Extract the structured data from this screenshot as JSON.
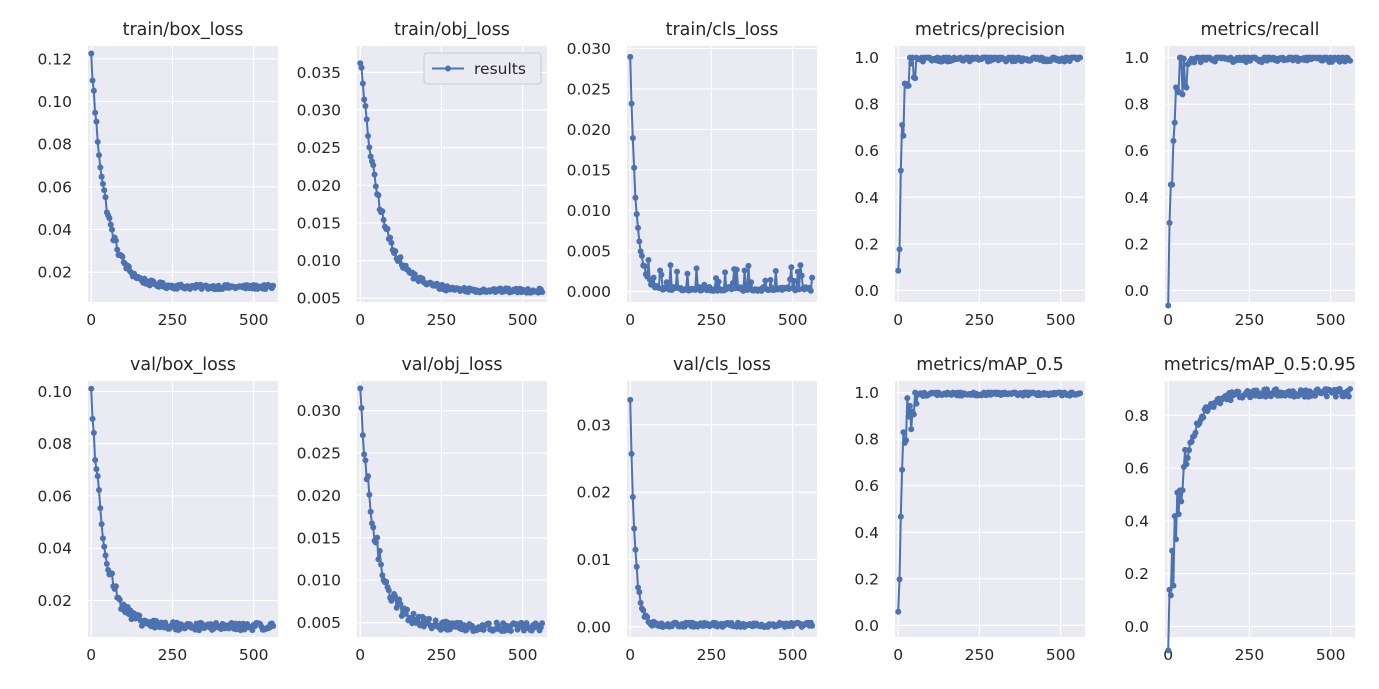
{
  "style": {
    "background": "#ffffff",
    "plot_background": "#eaeaf2",
    "grid_color": "#ffffff",
    "series_color": "#4c72b0",
    "text_color": "#262626"
  },
  "legend": {
    "label": "results",
    "panel": 1,
    "placement": "upper-right"
  },
  "chart_data": [
    {
      "type": "line",
      "title": "train/box_loss",
      "xlim": [
        -10,
        575
      ],
      "ylim": [
        0.006,
        0.126
      ],
      "xticks": [
        0,
        250,
        500
      ],
      "yticks": [
        0.02,
        0.04,
        0.06,
        0.08,
        0.1,
        0.12
      ],
      "xtick_labels": [
        "0",
        "250",
        "500"
      ],
      "ytick_labels": [
        "0.02",
        "0.04",
        "0.06",
        "0.08",
        "0.10",
        "0.12"
      ],
      "curve": {
        "shape": "decay",
        "start": 0.121,
        "end": 0.013,
        "tau": 45,
        "noise": 0.0025,
        "spikes": 0,
        "spike_size": 0
      }
    },
    {
      "type": "line",
      "title": "train/obj_loss",
      "xlim": [
        -10,
        575
      ],
      "ylim": [
        0.0045,
        0.0385
      ],
      "xticks": [
        0,
        250,
        500
      ],
      "yticks": [
        0.005,
        0.01,
        0.015,
        0.02,
        0.025,
        0.03,
        0.035
      ],
      "xtick_labels": [
        "0",
        "250",
        "500"
      ],
      "ytick_labels": [
        "0.005",
        "0.010",
        "0.015",
        "0.020",
        "0.025",
        "0.030",
        "0.035"
      ],
      "curve": {
        "shape": "decay",
        "start": 0.037,
        "end": 0.006,
        "tau": 60,
        "noise": 0.0007,
        "spikes": 0,
        "spike_size": 0
      }
    },
    {
      "type": "line",
      "title": "train/cls_loss",
      "xlim": [
        -10,
        575
      ],
      "ylim": [
        -0.0013,
        0.0303
      ],
      "xticks": [
        0,
        250,
        500
      ],
      "yticks": [
        0.0,
        0.005,
        0.01,
        0.015,
        0.02,
        0.025,
        0.03
      ],
      "xtick_labels": [
        "0",
        "250",
        "500"
      ],
      "ytick_labels": [
        "0.000",
        "0.005",
        "0.010",
        "0.015",
        "0.020",
        "0.025",
        "0.030"
      ],
      "curve": {
        "shape": "decay",
        "start": 0.029,
        "end": 0.0003,
        "tau": 18,
        "noise": 0.0006,
        "spikes": 40,
        "spike_size": 0.003
      }
    },
    {
      "type": "line",
      "title": "metrics/precision",
      "xlim": [
        -10,
        575
      ],
      "ylim": [
        -0.05,
        1.05
      ],
      "xticks": [
        0,
        250,
        500
      ],
      "yticks": [
        0.0,
        0.2,
        0.4,
        0.6,
        0.8,
        1.0
      ],
      "xtick_labels": [
        "0",
        "250",
        "500"
      ],
      "ytick_labels": [
        "0.0",
        "0.2",
        "0.4",
        "0.6",
        "0.8",
        "1.0"
      ],
      "curve": {
        "shape": "rise",
        "start": 0.0,
        "end": 0.995,
        "tau": 12,
        "noise": 0.012,
        "spikes": 0,
        "spike_size": 0
      }
    },
    {
      "type": "line",
      "title": "metrics/recall",
      "xlim": [
        -10,
        575
      ],
      "ylim": [
        -0.05,
        1.05
      ],
      "xticks": [
        0,
        250,
        500
      ],
      "yticks": [
        0.0,
        0.2,
        0.4,
        0.6,
        0.8,
        1.0
      ],
      "xtick_labels": [
        "0",
        "250",
        "500"
      ],
      "ytick_labels": [
        "0.0",
        "0.2",
        "0.4",
        "0.6",
        "0.8",
        "1.0"
      ],
      "curve": {
        "shape": "rise",
        "start": 0.0,
        "end": 0.995,
        "tau": 14,
        "noise": 0.015,
        "spikes": 0,
        "spike_size": 0
      }
    },
    {
      "type": "line",
      "title": "val/box_loss",
      "xlim": [
        -10,
        575
      ],
      "ylim": [
        0.006,
        0.104
      ],
      "xticks": [
        0,
        250,
        500
      ],
      "yticks": [
        0.02,
        0.04,
        0.06,
        0.08,
        0.1
      ],
      "xtick_labels": [
        "0",
        "250",
        "500"
      ],
      "ytick_labels": [
        "0.02",
        "0.04",
        "0.06",
        "0.08",
        "0.10"
      ],
      "curve": {
        "shape": "decay",
        "start": 0.1,
        "end": 0.01,
        "tau": 40,
        "noise": 0.0035,
        "spikes": 0,
        "spike_size": 0
      }
    },
    {
      "type": "line",
      "title": "val/obj_loss",
      "xlim": [
        -10,
        575
      ],
      "ylim": [
        0.0033,
        0.0335
      ],
      "xticks": [
        0,
        250,
        500
      ],
      "yticks": [
        0.005,
        0.01,
        0.015,
        0.02,
        0.025,
        0.03
      ],
      "xtick_labels": [
        "0",
        "250",
        "500"
      ],
      "ytick_labels": [
        "0.005",
        "0.010",
        "0.015",
        "0.020",
        "0.025",
        "0.030"
      ],
      "curve": {
        "shape": "decay",
        "start": 0.031,
        "end": 0.0045,
        "tau": 50,
        "noise": 0.0012,
        "spikes": 0,
        "spike_size": 0
      }
    },
    {
      "type": "line",
      "title": "val/cls_loss",
      "xlim": [
        -10,
        575
      ],
      "ylim": [
        -0.0015,
        0.0365
      ],
      "xticks": [
        0,
        250,
        500
      ],
      "yticks": [
        0.0,
        0.01,
        0.02,
        0.03
      ],
      "xtick_labels": [
        "0",
        "250",
        "500"
      ],
      "ytick_labels": [
        "0.00",
        "0.01",
        "0.02",
        "0.03"
      ],
      "curve": {
        "shape": "decay",
        "start": 0.034,
        "end": 0.0003,
        "tau": 14,
        "noise": 0.0008,
        "spikes": 0,
        "spike_size": 0
      }
    },
    {
      "type": "line",
      "title": "metrics/mAP_0.5",
      "xlim": [
        -10,
        575
      ],
      "ylim": [
        -0.05,
        1.05
      ],
      "xticks": [
        0,
        250,
        500
      ],
      "yticks": [
        0.0,
        0.2,
        0.4,
        0.6,
        0.8,
        1.0
      ],
      "xtick_labels": [
        "0",
        "250",
        "500"
      ],
      "ytick_labels": [
        "0.0",
        "0.2",
        "0.4",
        "0.6",
        "0.8",
        "1.0"
      ],
      "curve": {
        "shape": "rise",
        "start": 0.0,
        "end": 0.995,
        "tau": 12,
        "noise": 0.008,
        "spikes": 0,
        "spike_size": 0
      }
    },
    {
      "type": "line",
      "title": "metrics/mAP_0.5:0.95",
      "xlim": [
        -10,
        575
      ],
      "ylim": [
        -0.04,
        0.93
      ],
      "xticks": [
        0,
        250,
        500
      ],
      "yticks": [
        0.0,
        0.2,
        0.4,
        0.6,
        0.8
      ],
      "xtick_labels": [
        "0",
        "250",
        "500"
      ],
      "ytick_labels": [
        "0.0",
        "0.2",
        "0.4",
        "0.6",
        "0.8"
      ],
      "curve": {
        "shape": "rise",
        "start": 0.0,
        "end": 0.885,
        "tau": 45,
        "noise": 0.015,
        "spikes": 0,
        "spike_size": 0
      }
    }
  ]
}
